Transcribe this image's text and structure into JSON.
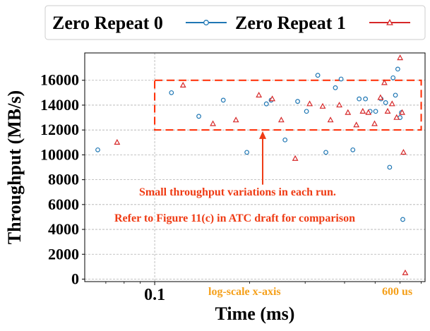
{
  "chart_data": {
    "type": "scatter",
    "xscale": "log",
    "xlim": [
      0.06,
      0.72
    ],
    "ylim": [
      -200,
      18200
    ],
    "xlabel": "Time (ms)",
    "ylabel": "Throughput (MB/s)",
    "x_ticks": [
      {
        "value": 0.1,
        "label": "0.1"
      }
    ],
    "y_ticks": [
      0,
      2000,
      4000,
      6000,
      8000,
      10000,
      12000,
      14000,
      16000
    ],
    "grid": true,
    "legend": {
      "placement": "top-outside",
      "entries": [
        "Zero Repeat 0",
        "Zero Repeat 1"
      ]
    },
    "series": [
      {
        "name": "Zero Repeat 0",
        "marker": "circle",
        "color": "#1f77b4",
        "points": [
          [
            0.066,
            10400
          ],
          [
            0.113,
            15000
          ],
          [
            0.138,
            13100
          ],
          [
            0.165,
            14400
          ],
          [
            0.196,
            10200
          ],
          [
            0.226,
            14100
          ],
          [
            0.234,
            14400
          ],
          [
            0.259,
            11200
          ],
          [
            0.284,
            14300
          ],
          [
            0.303,
            13500
          ],
          [
            0.329,
            16400
          ],
          [
            0.349,
            10200
          ],
          [
            0.374,
            15400
          ],
          [
            0.39,
            16100
          ],
          [
            0.425,
            10400
          ],
          [
            0.445,
            14500
          ],
          [
            0.466,
            14500
          ],
          [
            0.482,
            13500
          ],
          [
            0.502,
            13500
          ],
          [
            0.522,
            14500
          ],
          [
            0.54,
            14200
          ],
          [
            0.556,
            9000
          ],
          [
            0.57,
            16200
          ],
          [
            0.58,
            14800
          ],
          [
            0.59,
            16900
          ],
          [
            0.6,
            13000
          ],
          [
            0.606,
            13400
          ],
          [
            0.612,
            4800
          ]
        ]
      },
      {
        "name": "Zero Repeat 1",
        "marker": "triangle",
        "color": "#d62728",
        "points": [
          [
            0.076,
            11000
          ],
          [
            0.123,
            15600
          ],
          [
            0.153,
            12500
          ],
          [
            0.181,
            12800
          ],
          [
            0.214,
            14800
          ],
          [
            0.236,
            14500
          ],
          [
            0.252,
            12800
          ],
          [
            0.279,
            9700
          ],
          [
            0.31,
            14100
          ],
          [
            0.341,
            13900
          ],
          [
            0.361,
            12800
          ],
          [
            0.385,
            14000
          ],
          [
            0.41,
            13400
          ],
          [
            0.436,
            12400
          ],
          [
            0.457,
            13500
          ],
          [
            0.476,
            13400
          ],
          [
            0.498,
            12500
          ],
          [
            0.52,
            14600
          ],
          [
            0.535,
            15800
          ],
          [
            0.548,
            13500
          ],
          [
            0.566,
            14100
          ],
          [
            0.585,
            13000
          ],
          [
            0.6,
            17800
          ],
          [
            0.609,
            13400
          ],
          [
            0.615,
            10200
          ],
          [
            0.623,
            500
          ]
        ]
      }
    ],
    "highlight_box": {
      "x": [
        0.1,
        0.7
      ],
      "y": [
        12000,
        16000
      ]
    },
    "annotations": {
      "variation_text": "Small throughput variations in each run.",
      "arrow_x": 0.22,
      "arrow_from_y": 7600,
      "arrow_to_y": 11900,
      "refer_text": "Refer to Figure 11(c) in ATC draft for comparison",
      "scale_text": "log-scale x-axis",
      "end_text": "600 us"
    }
  }
}
